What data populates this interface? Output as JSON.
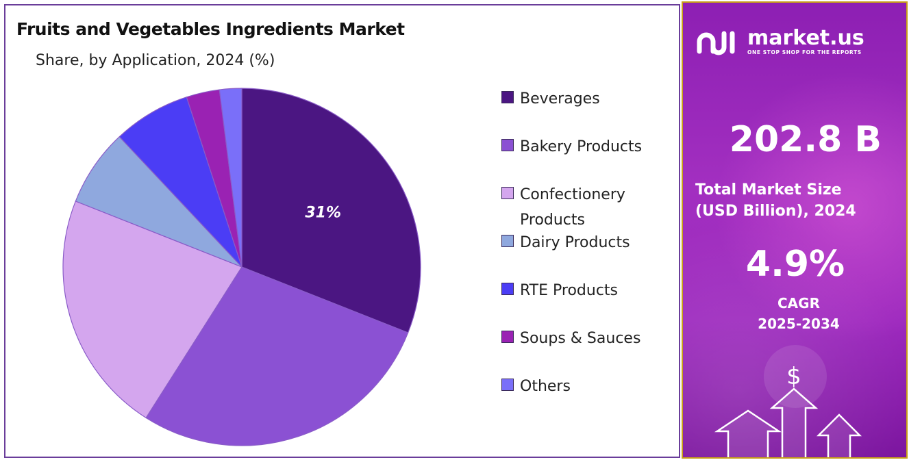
{
  "chart_data": {
    "type": "pie",
    "title": "Fruits and Vegetables Ingredients Market",
    "subtitle": "Share, by Application, 2024 (%)",
    "categories": [
      "Beverages",
      "Bakery Products",
      "Confectionery Products",
      "Dairy Products",
      "RTE Products",
      "Soups & Sauces",
      "Others"
    ],
    "values": [
      31,
      28,
      22,
      7,
      7,
      3,
      2
    ],
    "data_labels": [
      "31%",
      "",
      "",
      "",
      "",
      "",
      ""
    ],
    "legend_labels": [
      "Beverages",
      "Bakery Products",
      "Confectionery\nProducts",
      "Dairy Products",
      "RTE Products",
      "Soups & Sauces",
      "Others"
    ],
    "colors": [
      "#4b1682",
      "#8b51d3",
      "#d4a6ee",
      "#8fa8de",
      "#4b3df5",
      "#9a22b3",
      "#7a6ff9"
    ],
    "legend_position": "right"
  },
  "sidebar": {
    "brand_name": "market.us",
    "brand_tagline": "ONE STOP SHOP FOR THE REPORTS",
    "market_value": "202.8 B",
    "market_label_line1": "Total Market Size",
    "market_label_line2": "(USD Billion), 2024",
    "cagr_value": "4.9%",
    "cagr_label_line1": "CAGR",
    "cagr_label_line2": "2025-2034",
    "dollar_icon": "dollar-sign-icon"
  }
}
